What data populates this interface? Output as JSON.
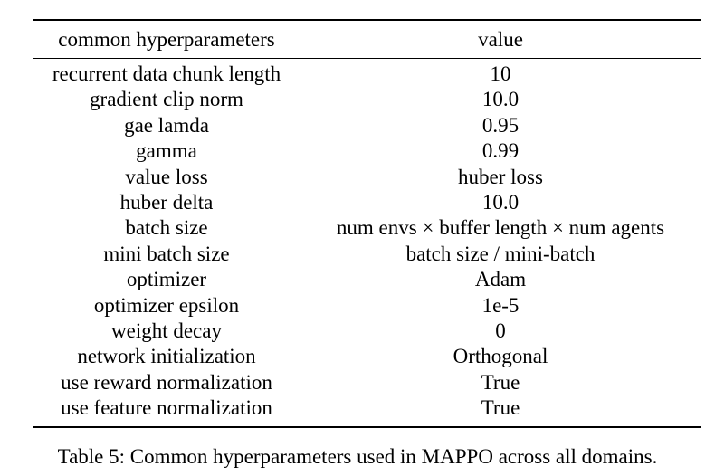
{
  "table": {
    "headers": [
      "common hyperparameters",
      "value"
    ],
    "rows": [
      [
        "recurrent data chunk length",
        "10"
      ],
      [
        "gradient clip norm",
        "10.0"
      ],
      [
        "gae lamda",
        "0.95"
      ],
      [
        "gamma",
        "0.99"
      ],
      [
        "value loss",
        "huber loss"
      ],
      [
        "huber delta",
        "10.0"
      ],
      [
        "batch size",
        "num envs × buffer length × num agents"
      ],
      [
        "mini batch size",
        "batch size / mini-batch"
      ],
      [
        "optimizer",
        "Adam"
      ],
      [
        "optimizer epsilon",
        "1e-5"
      ],
      [
        "weight decay",
        "0"
      ],
      [
        "network initialization",
        "Orthogonal"
      ],
      [
        "use reward normalization",
        "True"
      ],
      [
        "use feature normalization",
        "True"
      ]
    ]
  },
  "caption": "Table 5: Common hyperparameters used in MAPPO across all domains."
}
